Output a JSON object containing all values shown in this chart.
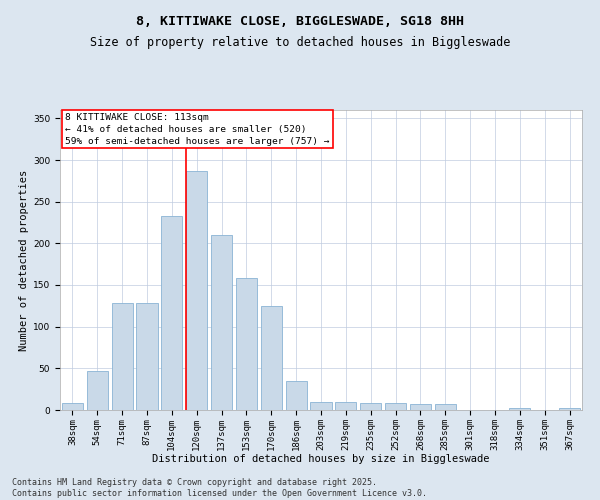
{
  "title": "8, KITTIWAKE CLOSE, BIGGLESWADE, SG18 8HH",
  "subtitle": "Size of property relative to detached houses in Biggleswade",
  "xlabel": "Distribution of detached houses by size in Biggleswade",
  "ylabel": "Number of detached properties",
  "categories": [
    "38sqm",
    "54sqm",
    "71sqm",
    "87sqm",
    "104sqm",
    "120sqm",
    "137sqm",
    "153sqm",
    "170sqm",
    "186sqm",
    "203sqm",
    "219sqm",
    "235sqm",
    "252sqm",
    "268sqm",
    "285sqm",
    "301sqm",
    "318sqm",
    "334sqm",
    "351sqm",
    "367sqm"
  ],
  "values": [
    9,
    47,
    128,
    128,
    233,
    287,
    210,
    158,
    125,
    35,
    10,
    10,
    9,
    9,
    7,
    7,
    0,
    0,
    2,
    0,
    2
  ],
  "bar_color": "#c9d9e8",
  "bar_edge_color": "#8ab4d4",
  "vline_x": 5.0,
  "vline_color": "red",
  "annotation_text": "8 KITTIWAKE CLOSE: 113sqm\n← 41% of detached houses are smaller (520)\n59% of semi-detached houses are larger (757) →",
  "annotation_box_color": "red",
  "ylim": [
    0,
    360
  ],
  "yticks": [
    0,
    50,
    100,
    150,
    200,
    250,
    300,
    350
  ],
  "bg_color": "#dce6f0",
  "plot_bg_color": "#ffffff",
  "footer_line1": "Contains HM Land Registry data © Crown copyright and database right 2025.",
  "footer_line2": "Contains public sector information licensed under the Open Government Licence v3.0.",
  "title_fontsize": 9.5,
  "subtitle_fontsize": 8.5,
  "axis_label_fontsize": 7.5,
  "tick_fontsize": 6.5,
  "annotation_fontsize": 6.8,
  "footer_fontsize": 6.0
}
